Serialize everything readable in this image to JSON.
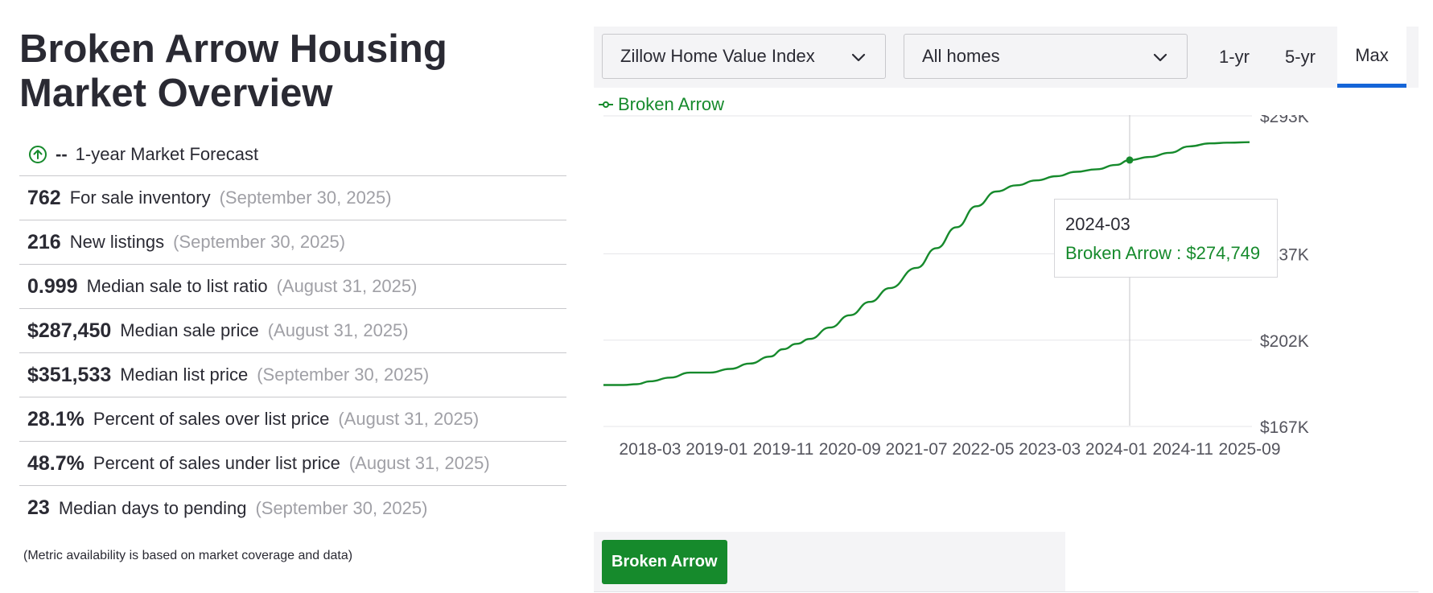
{
  "title": "Broken Arrow Housing Market Overview",
  "forecast": {
    "value": "--",
    "label": "1-year Market Forecast"
  },
  "metrics": [
    {
      "value": "762",
      "label": "For sale inventory",
      "date": "(September 30, 2025)"
    },
    {
      "value": "216",
      "label": "New listings",
      "date": "(September 30, 2025)"
    },
    {
      "value": "0.999",
      "label": "Median sale to list ratio",
      "date": "(August 31, 2025)"
    },
    {
      "value": "$287,450",
      "label": "Median sale price",
      "date": "(August 31, 2025)"
    },
    {
      "value": "$351,533",
      "label": "Median list price",
      "date": "(September 30, 2025)"
    },
    {
      "value": "28.1%",
      "label": "Percent of sales over list price",
      "date": "(August 31, 2025)"
    },
    {
      "value": "48.7%",
      "label": "Percent of sales under list price",
      "date": "(August 31, 2025)"
    },
    {
      "value": "23",
      "label": "Median days to pending",
      "date": "(September 30, 2025)"
    }
  ],
  "note": "(Metric availability is based on market coverage and data)",
  "controls": {
    "metric_select": "Zillow Home Value Index",
    "home_type_select": "All homes",
    "ranges": [
      "1-yr",
      "5-yr",
      "Max"
    ],
    "active_range": "Max"
  },
  "tooltip": {
    "date": "2024-03",
    "label": "Broken Arrow : $274,749"
  },
  "chip": "Broken Arrow",
  "colors": {
    "series": "#168a2c",
    "accent": "#1565d8",
    "text": "#2a2a33",
    "muted": "#a0a0a6"
  },
  "chart_data": {
    "type": "line",
    "series": [
      {
        "name": "Broken Arrow",
        "x": [
          "2017-08",
          "2017-11",
          "2018-01",
          "2018-03",
          "2018-06",
          "2018-09",
          "2018-12",
          "2019-03",
          "2019-06",
          "2019-09",
          "2019-11",
          "2020-01",
          "2020-03",
          "2020-06",
          "2020-09",
          "2020-12",
          "2021-03",
          "2021-07",
          "2021-10",
          "2022-01",
          "2022-04",
          "2022-07",
          "2022-10",
          "2023-01",
          "2023-04",
          "2023-07",
          "2023-10",
          "2024-01",
          "2024-03",
          "2024-06",
          "2024-09",
          "2024-12",
          "2025-03",
          "2025-06",
          "2025-09"
        ],
        "y": [
          183500,
          183500,
          183800,
          185000,
          186500,
          188500,
          188500,
          190000,
          192200,
          195000,
          198000,
          200200,
          202200,
          206800,
          211800,
          217200,
          222800,
          231000,
          239000,
          247500,
          256000,
          262000,
          264500,
          266500,
          268200,
          270000,
          271000,
          272800,
          274749,
          276000,
          277700,
          280300,
          281500,
          281800,
          282000
        ]
      }
    ],
    "x_ticks": [
      "2018-03",
      "2019-01",
      "2019-11",
      "2020-09",
      "2021-07",
      "2022-05",
      "2023-03",
      "2024-01",
      "2024-11",
      "2025-09"
    ],
    "y_ticks": [
      167000,
      202000,
      237000,
      293000
    ],
    "y_tick_labels": [
      "$167K",
      "$202K",
      "$237K",
      "$293K"
    ],
    "ylim": [
      167000,
      293000
    ],
    "legend": "top-left",
    "grid": true,
    "highlight": {
      "x": "2024-03",
      "y": 274749
    }
  }
}
